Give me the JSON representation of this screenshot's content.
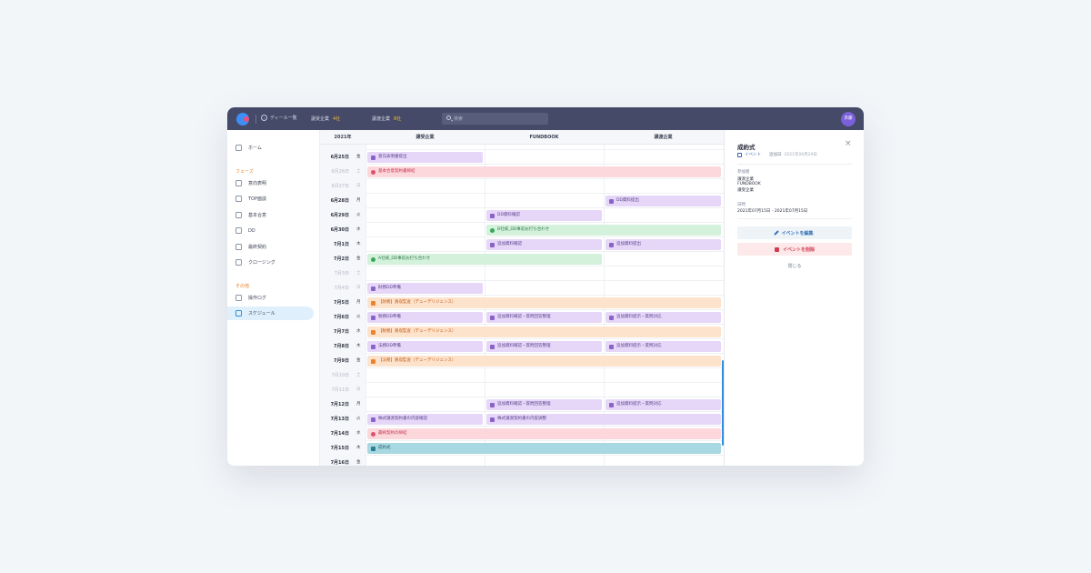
{
  "topbar": {
    "back_label": "ディール一覧",
    "company_a_label": "譲受企業",
    "company_a_count": "4社",
    "company_b_label": "譲渡企業",
    "company_b_count": "8社",
    "search_placeholder": "検索",
    "avatar_initials": "斉藤"
  },
  "sidebar": {
    "home": "ホーム",
    "phase_heading": "フェーズ",
    "phase_items": [
      "意向表明",
      "TOP面談",
      "基本合意",
      "DD",
      "最終契約",
      "クロージング"
    ],
    "other_heading": "その他",
    "other_items": [
      "操作ログ",
      "スケジュール"
    ]
  },
  "schedule": {
    "year": "2021年",
    "columns": [
      "譲受企業",
      "FUNDBOOK",
      "譲渡企業"
    ],
    "rows": [
      {
        "date": "6月24日",
        "dow": "木",
        "weekend": false
      },
      {
        "date": "6月25日",
        "dow": "金",
        "weekend": false
      },
      {
        "date": "6月26日",
        "dow": "土",
        "weekend": true
      },
      {
        "date": "6月27日",
        "dow": "日",
        "weekend": true
      },
      {
        "date": "6月28日",
        "dow": "月",
        "weekend": false
      },
      {
        "date": "6月29日",
        "dow": "火",
        "weekend": false
      },
      {
        "date": "6月30日",
        "dow": "水",
        "weekend": false
      },
      {
        "date": "7月1日",
        "dow": "木",
        "weekend": false
      },
      {
        "date": "7月2日",
        "dow": "金",
        "weekend": false
      },
      {
        "date": "7月3日",
        "dow": "土",
        "weekend": true
      },
      {
        "date": "7月4日",
        "dow": "日",
        "weekend": true
      },
      {
        "date": "7月5日",
        "dow": "月",
        "weekend": false
      },
      {
        "date": "7月6日",
        "dow": "火",
        "weekend": false
      },
      {
        "date": "7月7日",
        "dow": "水",
        "weekend": false
      },
      {
        "date": "7月8日",
        "dow": "木",
        "weekend": false
      },
      {
        "date": "7月9日",
        "dow": "金",
        "weekend": false
      },
      {
        "date": "7月10日",
        "dow": "土",
        "weekend": true
      },
      {
        "date": "7月11日",
        "dow": "日",
        "weekend": true
      },
      {
        "date": "7月12日",
        "dow": "月",
        "weekend": false
      },
      {
        "date": "7月13日",
        "dow": "火",
        "weekend": false
      },
      {
        "date": "7月14日",
        "dow": "水",
        "weekend": false
      },
      {
        "date": "7月15日",
        "dow": "木",
        "weekend": false
      },
      {
        "date": "7月16日",
        "dow": "金",
        "weekend": false
      }
    ],
    "events": [
      {
        "row": 1,
        "col": 0,
        "span": 1,
        "type": "doc",
        "label": "意向表明書提出"
      },
      {
        "row": 2,
        "col": 0,
        "span": 3,
        "type": "deal",
        "label": "基本合意契約書締結"
      },
      {
        "row": 4,
        "col": 2,
        "span": 1,
        "type": "doc",
        "label": "DD資料提出"
      },
      {
        "row": 5,
        "col": 1,
        "span": 1,
        "type": "doc",
        "label": "DD資料確認"
      },
      {
        "row": 6,
        "col": 1,
        "span": 2,
        "type": "call",
        "label": "B社様_DD事前お打ち合わせ"
      },
      {
        "row": 7,
        "col": 1,
        "span": 1,
        "type": "doc",
        "label": "追加資料確認"
      },
      {
        "row": 7,
        "col": 2,
        "span": 1,
        "type": "doc",
        "label": "追加資料提出"
      },
      {
        "row": 8,
        "col": 0,
        "span": 2,
        "type": "call",
        "label": "A社様_DD事前お打ち合わせ"
      },
      {
        "row": 10,
        "col": 0,
        "span": 1,
        "type": "doc",
        "label": "財務DD準備"
      },
      {
        "row": 11,
        "col": 0,
        "span": 3,
        "type": "dd",
        "label": "【財務】買収監査（デューデリジェンス）"
      },
      {
        "row": 12,
        "col": 0,
        "span": 1,
        "type": "doc",
        "label": "税務DD準備"
      },
      {
        "row": 12,
        "col": 1,
        "span": 1,
        "type": "doc",
        "label": "追加資料確認・質問回答整理"
      },
      {
        "row": 12,
        "col": 2,
        "span": 1,
        "type": "doc",
        "label": "追加資料提示・質問対応"
      },
      {
        "row": 13,
        "col": 0,
        "span": 3,
        "type": "dd",
        "label": "【税務】買収監査（デューデリジェンス）"
      },
      {
        "row": 14,
        "col": 0,
        "span": 1,
        "type": "doc",
        "label": "法務DD準備"
      },
      {
        "row": 14,
        "col": 1,
        "span": 1,
        "type": "doc",
        "label": "追加資料確認・質問回答整理"
      },
      {
        "row": 14,
        "col": 2,
        "span": 1,
        "type": "doc",
        "label": "追加資料提示・質問対応"
      },
      {
        "row": 15,
        "col": 0,
        "span": 3,
        "type": "dd",
        "label": "【法務】買収監査（デューデリジェンス）"
      },
      {
        "row": 18,
        "col": 1,
        "span": 1,
        "type": "doc",
        "label": "追加資料確認・質問回答整理"
      },
      {
        "row": 18,
        "col": 2,
        "span": 1,
        "type": "doc",
        "label": "追加資料提示・質問対応"
      },
      {
        "row": 19,
        "col": 0,
        "span": 1,
        "type": "doc",
        "label": "株式譲渡契約書の内容確認"
      },
      {
        "row": 19,
        "col": 1,
        "span": 2,
        "type": "doc",
        "label": "株式譲渡契約書の内容調整"
      },
      {
        "row": 20,
        "col": 0,
        "span": 3,
        "type": "deal",
        "label": "最終契約の締結"
      },
      {
        "row": 21,
        "col": 0,
        "span": 3,
        "type": "final",
        "label": "成約式"
      }
    ]
  },
  "panel": {
    "title": "成約式",
    "type_label": "イベント",
    "added_label": "追加日",
    "added_date": "2021年06月29日",
    "participants_label": "参加者",
    "participants": [
      "譲渡企業",
      "FUNDBOOK",
      "譲受企業"
    ],
    "date_label": "日時",
    "date_value": "2021年07月15日 - 2021年07月15日",
    "edit_label": "イベントを編集",
    "delete_label": "イベントを削除",
    "close_label": "閉じる"
  }
}
